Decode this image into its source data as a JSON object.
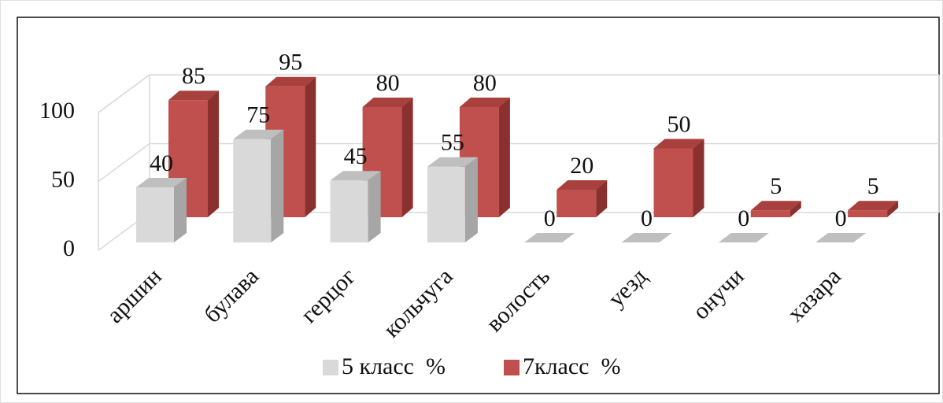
{
  "chart_data": {
    "type": "bar3d",
    "categories": [
      "аршин",
      "булава",
      "герцог",
      "кольчуга",
      "волость",
      "уезд",
      "онучи",
      "хазара"
    ],
    "series": [
      {
        "name": "5 класс  %",
        "color": "#d9d9d9",
        "values": [
          40,
          75,
          45,
          55,
          0,
          0,
          0,
          0
        ]
      },
      {
        "name": "7класс  %",
        "color": "#c0504d",
        "values": [
          85,
          95,
          80,
          80,
          20,
          50,
          5,
          5
        ]
      }
    ],
    "ylim": [
      0,
      100
    ],
    "yticks": [
      0,
      50,
      100
    ],
    "grid": true,
    "legend": "bottom"
  }
}
